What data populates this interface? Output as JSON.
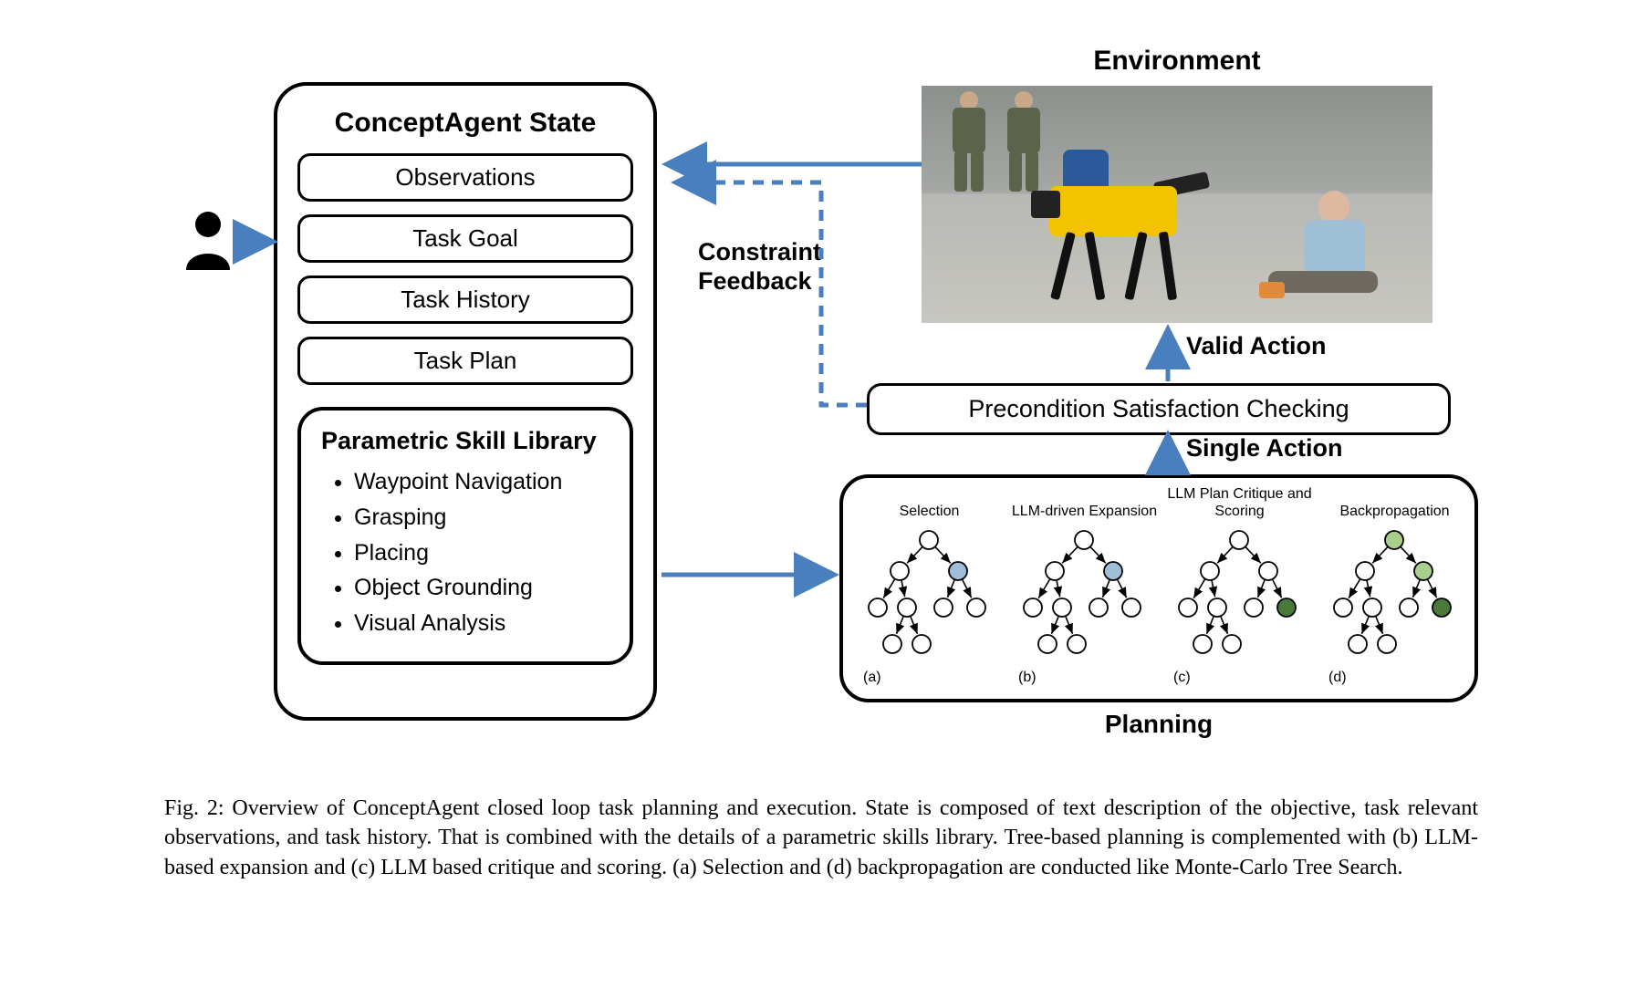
{
  "colors": {
    "arrow": "#4a7fbf",
    "node_stroke": "#000000",
    "node_fill_empty": "#ffffff",
    "node_fill_selected": "#9fbed9",
    "node_fill_scored_dark": "#4a7a3a",
    "node_fill_scored_light": "#a9cf8f",
    "border": "#000000",
    "background": "#ffffff"
  },
  "state_box": {
    "title": "ConceptAgent State",
    "items": [
      "Observations",
      "Task Goal",
      "Task History",
      "Task Plan"
    ]
  },
  "skill_library": {
    "title": "Parametric Skill Library",
    "items": [
      "Waypoint Navigation",
      "Grasping",
      "Placing",
      "Object Grounding",
      "Visual Analysis"
    ]
  },
  "env_label": "Environment",
  "precond_label": "Precondition Satisfaction Checking",
  "valid_action_label": "Valid Action",
  "single_action_label": "Single Action",
  "constraint_label_line1": "Constraint",
  "constraint_label_line2": "Feedback",
  "planning_label": "Planning",
  "trees": {
    "a": {
      "title": "Selection",
      "letter": "(a)"
    },
    "b": {
      "title": "LLM-driven Expansion",
      "letter": "(b)"
    },
    "c": {
      "title": "LLM Plan Critique and Scoring",
      "letter": "(c)"
    },
    "d": {
      "title": "Backpropagation",
      "letter": "(d)"
    }
  },
  "node_radius": 10,
  "arrow_stroke_width": 4,
  "dashed_pattern": "10 8",
  "caption": "Fig. 2: Overview of ConceptAgent closed loop task planning and execution. State is composed of text description of the objective, task relevant observations, and task history. That is combined with the details of a parametric skills library. Tree-based planning is complemented with (b) LLM-based expansion and (c) LLM based critique and scoring. (a) Selection and (d) backpropagation are conducted like Monte-Carlo Tree Search.",
  "environment_scene": {
    "description": "Indoor lab. Yellow quadruped robot (Boston Dynamics Spot) center-left with black manipulator arm. Person in light-blue shirt sitting/lying on floor at right. Two standing figures in camouflage at back-left. Blue barrel in background.",
    "robot_color": "#f3c300",
    "person_shirt": "#9fbfd6",
    "person_pants": "#6f6a60",
    "floor_color": "#c7c6c0",
    "wall_color": "#8c8f8c",
    "barrel_color": "#2a5a9c"
  }
}
